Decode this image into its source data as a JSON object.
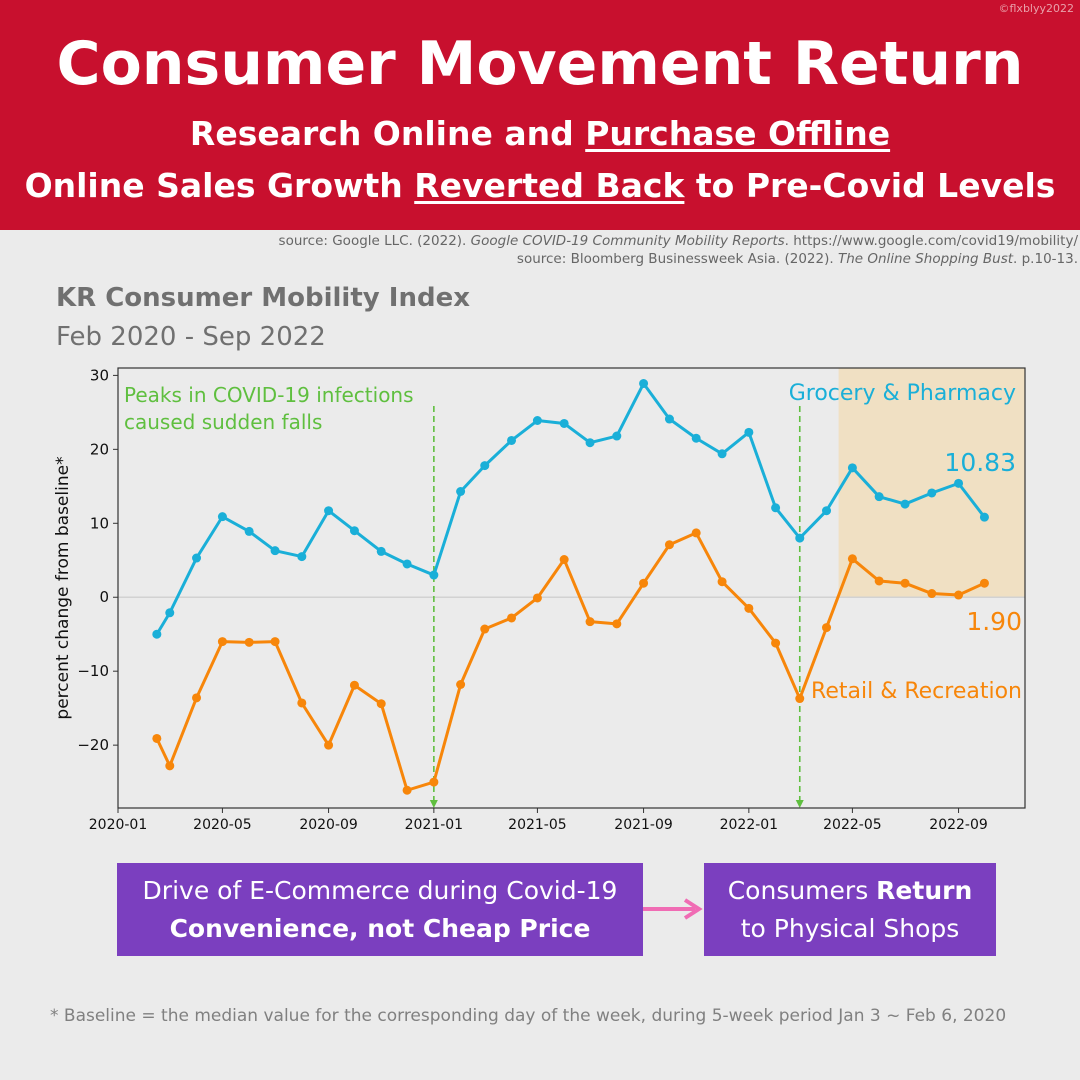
{
  "banner": {
    "copyright": "©flxblyy2022",
    "title": "Consumer Movement Return",
    "subtitle1_a": "Research Online and ",
    "subtitle1_b": "Purchase Offline",
    "subtitle2_a": "Online Sales Growth ",
    "subtitle2_b": "Reverted Back",
    "subtitle2_c": " to Pre-Covid Levels"
  },
  "sources": {
    "line1_a": "source: Google LLC. (2022). ",
    "line1_b": "Google COVID-19 Community Mobility Reports",
    "line1_c": ". https://www.google.com/covid19/mobility/",
    "line2_a": "source: Bloomberg Businessweek Asia. (2022). ",
    "line2_b": "The Online Shopping Bust",
    "line2_c": ". p.10-13."
  },
  "chart_data": {
    "type": "line",
    "title": "KR Consumer Mobility Index",
    "subtitle": "Feb 2020 - Sep 2022",
    "ylabel": "percent change from baseline*",
    "xlabel": "",
    "ylim": [
      -28.5,
      31
    ],
    "xlim": [
      "2020-01-01",
      "2022-11-17"
    ],
    "grid": false,
    "x_ticks": [
      "2020-01",
      "2020-05",
      "2020-09",
      "2021-01",
      "2021-05",
      "2021-09",
      "2022-01",
      "2022-05",
      "2022-09"
    ],
    "y_ticks": [
      30,
      20,
      10,
      0,
      -10,
      -20
    ],
    "y_tick_labels": [
      "30",
      "20",
      "10",
      "0",
      "−10",
      "−20"
    ],
    "x": [
      "2020-02-15",
      "2020-03-01",
      "2020-04-01",
      "2020-05-01",
      "2020-06-01",
      "2020-07-01",
      "2020-08-01",
      "2020-09-01",
      "2020-10-01",
      "2020-11-01",
      "2020-12-01",
      "2021-01-01",
      "2021-02-01",
      "2021-03-01",
      "2021-04-01",
      "2021-05-01",
      "2021-06-01",
      "2021-07-01",
      "2021-08-01",
      "2021-09-01",
      "2021-10-01",
      "2021-11-01",
      "2021-12-01",
      "2022-01-01",
      "2022-02-01",
      "2022-03-01",
      "2022-04-01",
      "2022-05-01",
      "2022-06-01",
      "2022-07-01",
      "2022-08-01",
      "2022-09-01",
      "2022-10-01"
    ],
    "series": [
      {
        "name": "Grocery & Pharmacy",
        "color": "#1aafd8",
        "values": [
          -5.0,
          -2.1,
          5.3,
          10.9,
          8.9,
          6.3,
          5.5,
          11.7,
          9.0,
          6.2,
          4.5,
          3.0,
          14.3,
          17.8,
          21.2,
          23.9,
          23.5,
          20.9,
          21.8,
          28.9,
          24.1,
          21.5,
          19.4,
          22.3,
          12.1,
          8.0,
          11.7,
          17.5,
          13.6,
          12.6,
          14.1,
          15.4,
          10.83
        ]
      },
      {
        "name": "Retail & Recreation",
        "color": "#f7860a",
        "values": [
          -19.1,
          -22.8,
          -13.6,
          -6.0,
          -6.1,
          -6.0,
          -14.3,
          -20.0,
          -11.9,
          -14.4,
          -26.1,
          -25.0,
          -11.8,
          -4.3,
          -2.8,
          -0.1,
          5.1,
          -3.3,
          -3.6,
          1.9,
          7.1,
          8.7,
          2.1,
          -1.5,
          -6.2,
          -13.7,
          -4.1,
          5.2,
          2.2,
          1.9,
          0.5,
          0.3,
          1.9
        ]
      }
    ],
    "annotations": {
      "peaks_text": [
        "Peaks in COVID-19 infections",
        "caused sudden falls"
      ],
      "peak_dates": [
        "2021-01-01",
        "2022-03-01"
      ],
      "shaded_region": {
        "x_start": "2022-04-15",
        "x_end": "2022-11-17",
        "y_start": 0,
        "y_end": 31,
        "color": "#f0e0c3"
      },
      "grocery_last_label": "10.83",
      "retail_last_label": "1.90",
      "peak_line_color": "#5fbf3f"
    }
  },
  "flow": {
    "box1_line1": "Drive of E-Commerce during Covid-19",
    "box1_line2": "Convenience, not Cheap Price",
    "box2_line1_a": "Consumers ",
    "box2_line1_b": "Return",
    "box2_line2": "to Physical Shops",
    "box_color": "#7b3fbf",
    "arrow_color": "#f06cb4"
  },
  "footnote": "* Baseline = the median value for the corresponding day of the week, during 5-week period Jan 3 ~ Feb 6, 2020"
}
